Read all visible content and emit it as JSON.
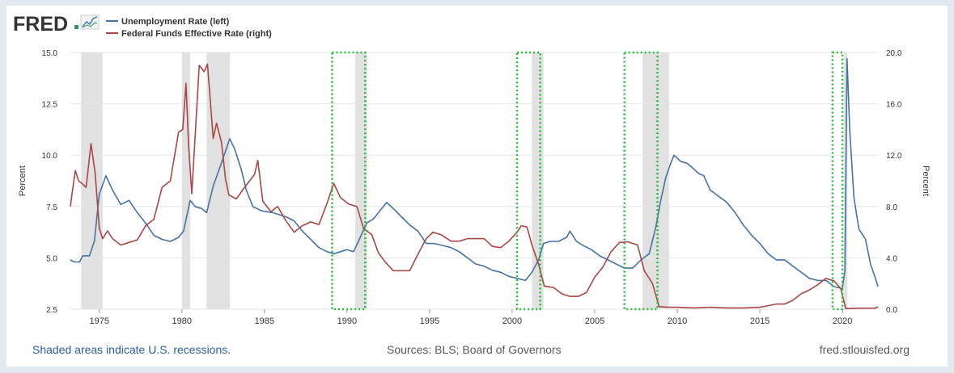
{
  "brand": {
    "logo_text": "FRED"
  },
  "colors": {
    "unemployment": "#4572a7",
    "fedfunds": "#aa4643",
    "recession_shading": "#e1e1e1",
    "highlight_box": "#22bb33",
    "plot_background": "#ffffff",
    "page_background": "#e1e9f0",
    "grid": "#e6e6e6"
  },
  "footer": {
    "recession_note": "Shaded areas indicate U.S. recessions.",
    "sources": "Sources: BLS; Board of Governors",
    "site": "fred.stlouisfed.org"
  },
  "chart_data": {
    "type": "line",
    "title": "",
    "legend": {
      "position": "top-left"
    },
    "x_axis": {
      "range": [
        1973.25,
        2022.15
      ],
      "ticks": [
        1975,
        1980,
        1985,
        1990,
        1995,
        2000,
        2005,
        2010,
        2015,
        2020
      ],
      "tick_labels": [
        "1975",
        "1980",
        "1985",
        "1990",
        "1995",
        "2000",
        "2005",
        "2010",
        "2015",
        "2020"
      ]
    },
    "y_axis_left": {
      "label": "Percent",
      "range": [
        2.5,
        15.0
      ],
      "ticks": [
        2.5,
        5.0,
        7.5,
        10.0,
        12.5,
        15.0
      ],
      "tick_labels": [
        "2.5",
        "5.0",
        "7.5",
        "10.0",
        "12.5",
        "15.0"
      ]
    },
    "y_axis_right": {
      "label": "Percent",
      "range": [
        0.0,
        20.0
      ],
      "ticks": [
        0.0,
        4.0,
        8.0,
        12.0,
        16.0,
        20.0
      ],
      "tick_labels": [
        "0.0",
        "4.0",
        "8.0",
        "12.0",
        "16.0",
        "20.0"
      ]
    },
    "grid": true,
    "recessions": [
      [
        1973.9,
        1975.2
      ],
      [
        1980.0,
        1980.5
      ],
      [
        1981.5,
        1982.9
      ],
      [
        1990.5,
        1991.2
      ],
      [
        2001.2,
        2001.9
      ],
      [
        2007.9,
        2009.5
      ],
      [
        2020.1,
        2020.3
      ]
    ],
    "highlight_boxes": [
      [
        1989.1,
        1991.1
      ],
      [
        2000.3,
        2001.7
      ],
      [
        2006.8,
        2008.8
      ],
      [
        2019.4,
        2020.0
      ]
    ],
    "series": [
      {
        "name": "Unemployment Rate (left)",
        "axis": "left",
        "color": "#4572a7",
        "points": [
          [
            1973.25,
            4.9
          ],
          [
            1973.5,
            4.8
          ],
          [
            1973.8,
            4.8
          ],
          [
            1974.0,
            5.1
          ],
          [
            1974.4,
            5.1
          ],
          [
            1974.7,
            5.8
          ],
          [
            1975.0,
            8.1
          ],
          [
            1975.4,
            9.0
          ],
          [
            1975.8,
            8.3
          ],
          [
            1976.3,
            7.6
          ],
          [
            1976.8,
            7.8
          ],
          [
            1977.3,
            7.2
          ],
          [
            1977.8,
            6.7
          ],
          [
            1978.3,
            6.1
          ],
          [
            1978.8,
            5.9
          ],
          [
            1979.3,
            5.8
          ],
          [
            1979.8,
            6.0
          ],
          [
            1980.1,
            6.3
          ],
          [
            1980.5,
            7.8
          ],
          [
            1980.8,
            7.5
          ],
          [
            1981.2,
            7.4
          ],
          [
            1981.5,
            7.2
          ],
          [
            1981.9,
            8.5
          ],
          [
            1982.3,
            9.4
          ],
          [
            1982.6,
            10.1
          ],
          [
            1982.9,
            10.8
          ],
          [
            1983.2,
            10.3
          ],
          [
            1983.6,
            9.3
          ],
          [
            1983.9,
            8.3
          ],
          [
            1984.3,
            7.5
          ],
          [
            1984.8,
            7.3
          ],
          [
            1985.5,
            7.2
          ],
          [
            1986.3,
            7.0
          ],
          [
            1986.8,
            6.8
          ],
          [
            1987.3,
            6.3
          ],
          [
            1987.8,
            5.9
          ],
          [
            1988.3,
            5.5
          ],
          [
            1988.8,
            5.3
          ],
          [
            1989.2,
            5.2
          ],
          [
            1989.6,
            5.3
          ],
          [
            1990.0,
            5.4
          ],
          [
            1990.4,
            5.3
          ],
          [
            1990.8,
            6.0
          ],
          [
            1991.2,
            6.7
          ],
          [
            1991.6,
            6.9
          ],
          [
            1992.0,
            7.3
          ],
          [
            1992.4,
            7.7
          ],
          [
            1992.8,
            7.4
          ],
          [
            1993.3,
            7.0
          ],
          [
            1993.8,
            6.6
          ],
          [
            1994.3,
            6.3
          ],
          [
            1994.8,
            5.7
          ],
          [
            1995.3,
            5.7
          ],
          [
            1995.8,
            5.6
          ],
          [
            1996.3,
            5.5
          ],
          [
            1996.8,
            5.3
          ],
          [
            1997.3,
            5.0
          ],
          [
            1997.8,
            4.7
          ],
          [
            1998.3,
            4.6
          ],
          [
            1998.8,
            4.4
          ],
          [
            1999.3,
            4.3
          ],
          [
            1999.8,
            4.1
          ],
          [
            2000.3,
            4.0
          ],
          [
            2000.8,
            3.9
          ],
          [
            2001.2,
            4.3
          ],
          [
            2001.6,
            4.9
          ],
          [
            2001.9,
            5.7
          ],
          [
            2002.3,
            5.8
          ],
          [
            2002.8,
            5.8
          ],
          [
            2003.3,
            6.0
          ],
          [
            2003.5,
            6.3
          ],
          [
            2003.9,
            5.8
          ],
          [
            2004.3,
            5.6
          ],
          [
            2004.8,
            5.4
          ],
          [
            2005.3,
            5.1
          ],
          [
            2005.8,
            4.9
          ],
          [
            2006.3,
            4.7
          ],
          [
            2006.8,
            4.5
          ],
          [
            2007.3,
            4.5
          ],
          [
            2007.8,
            4.9
          ],
          [
            2008.3,
            5.2
          ],
          [
            2008.7,
            6.5
          ],
          [
            2009.0,
            7.8
          ],
          [
            2009.3,
            8.9
          ],
          [
            2009.6,
            9.6
          ],
          [
            2009.8,
            10.0
          ],
          [
            2010.2,
            9.7
          ],
          [
            2010.6,
            9.6
          ],
          [
            2010.9,
            9.4
          ],
          [
            2011.3,
            9.1
          ],
          [
            2011.6,
            9.0
          ],
          [
            2012.0,
            8.3
          ],
          [
            2012.5,
            8.0
          ],
          [
            2013.0,
            7.7
          ],
          [
            2013.5,
            7.2
          ],
          [
            2014.0,
            6.6
          ],
          [
            2014.5,
            6.1
          ],
          [
            2015.0,
            5.7
          ],
          [
            2015.5,
            5.2
          ],
          [
            2016.0,
            4.9
          ],
          [
            2016.5,
            4.9
          ],
          [
            2017.0,
            4.6
          ],
          [
            2017.5,
            4.3
          ],
          [
            2018.0,
            4.0
          ],
          [
            2018.5,
            3.9
          ],
          [
            2019.0,
            3.9
          ],
          [
            2019.5,
            3.6
          ],
          [
            2020.0,
            3.5
          ],
          [
            2020.15,
            4.4
          ],
          [
            2020.28,
            14.7
          ],
          [
            2020.45,
            11.1
          ],
          [
            2020.7,
            7.9
          ],
          [
            2021.0,
            6.4
          ],
          [
            2021.4,
            5.9
          ],
          [
            2021.7,
            4.7
          ],
          [
            2022.0,
            4.0
          ],
          [
            2022.15,
            3.6
          ]
        ]
      },
      {
        "name": "Federal Funds Effective Rate (right)",
        "axis": "right",
        "color": "#aa4643",
        "points": [
          [
            1973.25,
            8.0
          ],
          [
            1973.35,
            9.0
          ],
          [
            1973.55,
            10.8
          ],
          [
            1973.75,
            10.0
          ],
          [
            1973.95,
            9.8
          ],
          [
            1974.2,
            9.5
          ],
          [
            1974.5,
            12.9
          ],
          [
            1974.75,
            10.6
          ],
          [
            1975.0,
            6.3
          ],
          [
            1975.2,
            5.5
          ],
          [
            1975.5,
            6.1
          ],
          [
            1975.8,
            5.5
          ],
          [
            1976.3,
            5.0
          ],
          [
            1976.8,
            5.2
          ],
          [
            1977.3,
            5.4
          ],
          [
            1977.8,
            6.5
          ],
          [
            1978.3,
            7.0
          ],
          [
            1978.8,
            9.5
          ],
          [
            1979.3,
            10.0
          ],
          [
            1979.8,
            13.8
          ],
          [
            1980.05,
            14.0
          ],
          [
            1980.25,
            17.6
          ],
          [
            1980.4,
            13.0
          ],
          [
            1980.6,
            9.0
          ],
          [
            1980.85,
            14.5
          ],
          [
            1981.05,
            19.0
          ],
          [
            1981.35,
            18.5
          ],
          [
            1981.55,
            19.1
          ],
          [
            1981.9,
            13.3
          ],
          [
            1982.1,
            14.5
          ],
          [
            1982.4,
            13.0
          ],
          [
            1982.65,
            10.1
          ],
          [
            1982.85,
            8.9
          ],
          [
            1983.3,
            8.6
          ],
          [
            1983.8,
            9.5
          ],
          [
            1984.4,
            10.5
          ],
          [
            1984.6,
            11.6
          ],
          [
            1984.9,
            8.4
          ],
          [
            1985.4,
            7.6
          ],
          [
            1985.8,
            8.0
          ],
          [
            1986.3,
            6.9
          ],
          [
            1986.8,
            6.0
          ],
          [
            1987.3,
            6.5
          ],
          [
            1987.8,
            6.8
          ],
          [
            1988.3,
            6.6
          ],
          [
            1988.8,
            8.3
          ],
          [
            1989.2,
            9.8
          ],
          [
            1989.6,
            8.7
          ],
          [
            1990.1,
            8.2
          ],
          [
            1990.6,
            8.0
          ],
          [
            1991.0,
            6.3
          ],
          [
            1991.5,
            5.8
          ],
          [
            1991.9,
            4.4
          ],
          [
            1992.3,
            3.7
          ],
          [
            1992.8,
            3.0
          ],
          [
            1993.3,
            3.0
          ],
          [
            1993.8,
            3.0
          ],
          [
            1994.3,
            4.3
          ],
          [
            1994.8,
            5.5
          ],
          [
            1995.2,
            6.0
          ],
          [
            1995.7,
            5.8
          ],
          [
            1996.3,
            5.3
          ],
          [
            1996.8,
            5.3
          ],
          [
            1997.3,
            5.5
          ],
          [
            1997.8,
            5.5
          ],
          [
            1998.3,
            5.5
          ],
          [
            1998.8,
            4.9
          ],
          [
            1999.3,
            4.8
          ],
          [
            1999.8,
            5.3
          ],
          [
            2000.3,
            6.0
          ],
          [
            2000.55,
            6.5
          ],
          [
            2000.9,
            6.4
          ],
          [
            2001.2,
            5.0
          ],
          [
            2001.6,
            3.5
          ],
          [
            2001.95,
            1.8
          ],
          [
            2002.5,
            1.7
          ],
          [
            2003.0,
            1.2
          ],
          [
            2003.5,
            1.0
          ],
          [
            2004.0,
            1.0
          ],
          [
            2004.5,
            1.3
          ],
          [
            2005.0,
            2.5
          ],
          [
            2005.5,
            3.3
          ],
          [
            2006.0,
            4.5
          ],
          [
            2006.5,
            5.2
          ],
          [
            2007.0,
            5.25
          ],
          [
            2007.6,
            5.0
          ],
          [
            2008.0,
            3.0
          ],
          [
            2008.5,
            2.0
          ],
          [
            2008.9,
            0.2
          ],
          [
            2009.5,
            0.15
          ],
          [
            2010.0,
            0.15
          ],
          [
            2011.0,
            0.1
          ],
          [
            2012.0,
            0.15
          ],
          [
            2013.0,
            0.1
          ],
          [
            2014.0,
            0.1
          ],
          [
            2015.0,
            0.15
          ],
          [
            2016.0,
            0.4
          ],
          [
            2016.5,
            0.4
          ],
          [
            2017.0,
            0.7
          ],
          [
            2017.5,
            1.2
          ],
          [
            2018.0,
            1.5
          ],
          [
            2018.5,
            1.9
          ],
          [
            2019.0,
            2.4
          ],
          [
            2019.5,
            2.2
          ],
          [
            2019.9,
            1.6
          ],
          [
            2020.2,
            0.05
          ],
          [
            2021.0,
            0.08
          ],
          [
            2022.0,
            0.08
          ],
          [
            2022.15,
            0.2
          ]
        ]
      }
    ]
  }
}
